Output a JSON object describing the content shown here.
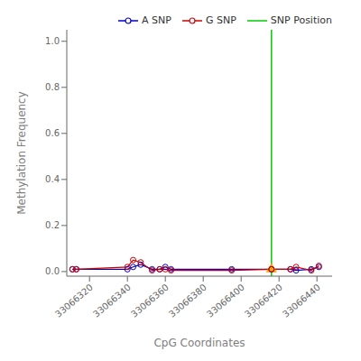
{
  "chart_data": {
    "type": "line",
    "xlabel": "CpG Coordinates",
    "ylabel": "Methylation Frequency",
    "x": [
      33066311,
      33066313,
      33066340,
      33066343,
      33066347,
      33066353,
      33066357,
      33066360,
      33066363,
      33066395,
      33066416,
      33066426,
      33066429,
      33066437,
      33066441
    ],
    "series": [
      {
        "name": "A SNP",
        "color": "#0000cc",
        "marker": "circle",
        "values": [
          0.01,
          0.01,
          0.01,
          0.02,
          0.03,
          0.01,
          0.01,
          0.02,
          0.01,
          0.01,
          0.01,
          0.01,
          0.005,
          0.01,
          0.02
        ]
      },
      {
        "name": "G SNP",
        "color": "#cc0000",
        "marker": "circle",
        "values": [
          0.01,
          0.01,
          0.02,
          0.05,
          0.04,
          0.005,
          0.01,
          0.01,
          0.005,
          0.005,
          0.01,
          0.01,
          0.02,
          0.005,
          0.025
        ]
      }
    ],
    "snp_line": {
      "name": "SNP Position",
      "x": 33066416,
      "color": "#00cc00"
    },
    "snp_marker": {
      "x": 33066416,
      "y": 0.01,
      "color": "#ffa500",
      "marker": "triangle"
    },
    "xlim": [
      33066308,
      33066448
    ],
    "xticks": [
      33066320,
      33066340,
      33066360,
      33066380,
      33066400,
      33066420,
      33066440
    ],
    "ylim": [
      -0.02,
      1.05
    ],
    "yticks": [
      {
        "value": 0.0,
        "label": "0.0"
      },
      0.2,
      0.4,
      0.6,
      0.8,
      {
        "value": 1.0,
        "label": "1.0"
      }
    ],
    "legend": "upper right"
  }
}
